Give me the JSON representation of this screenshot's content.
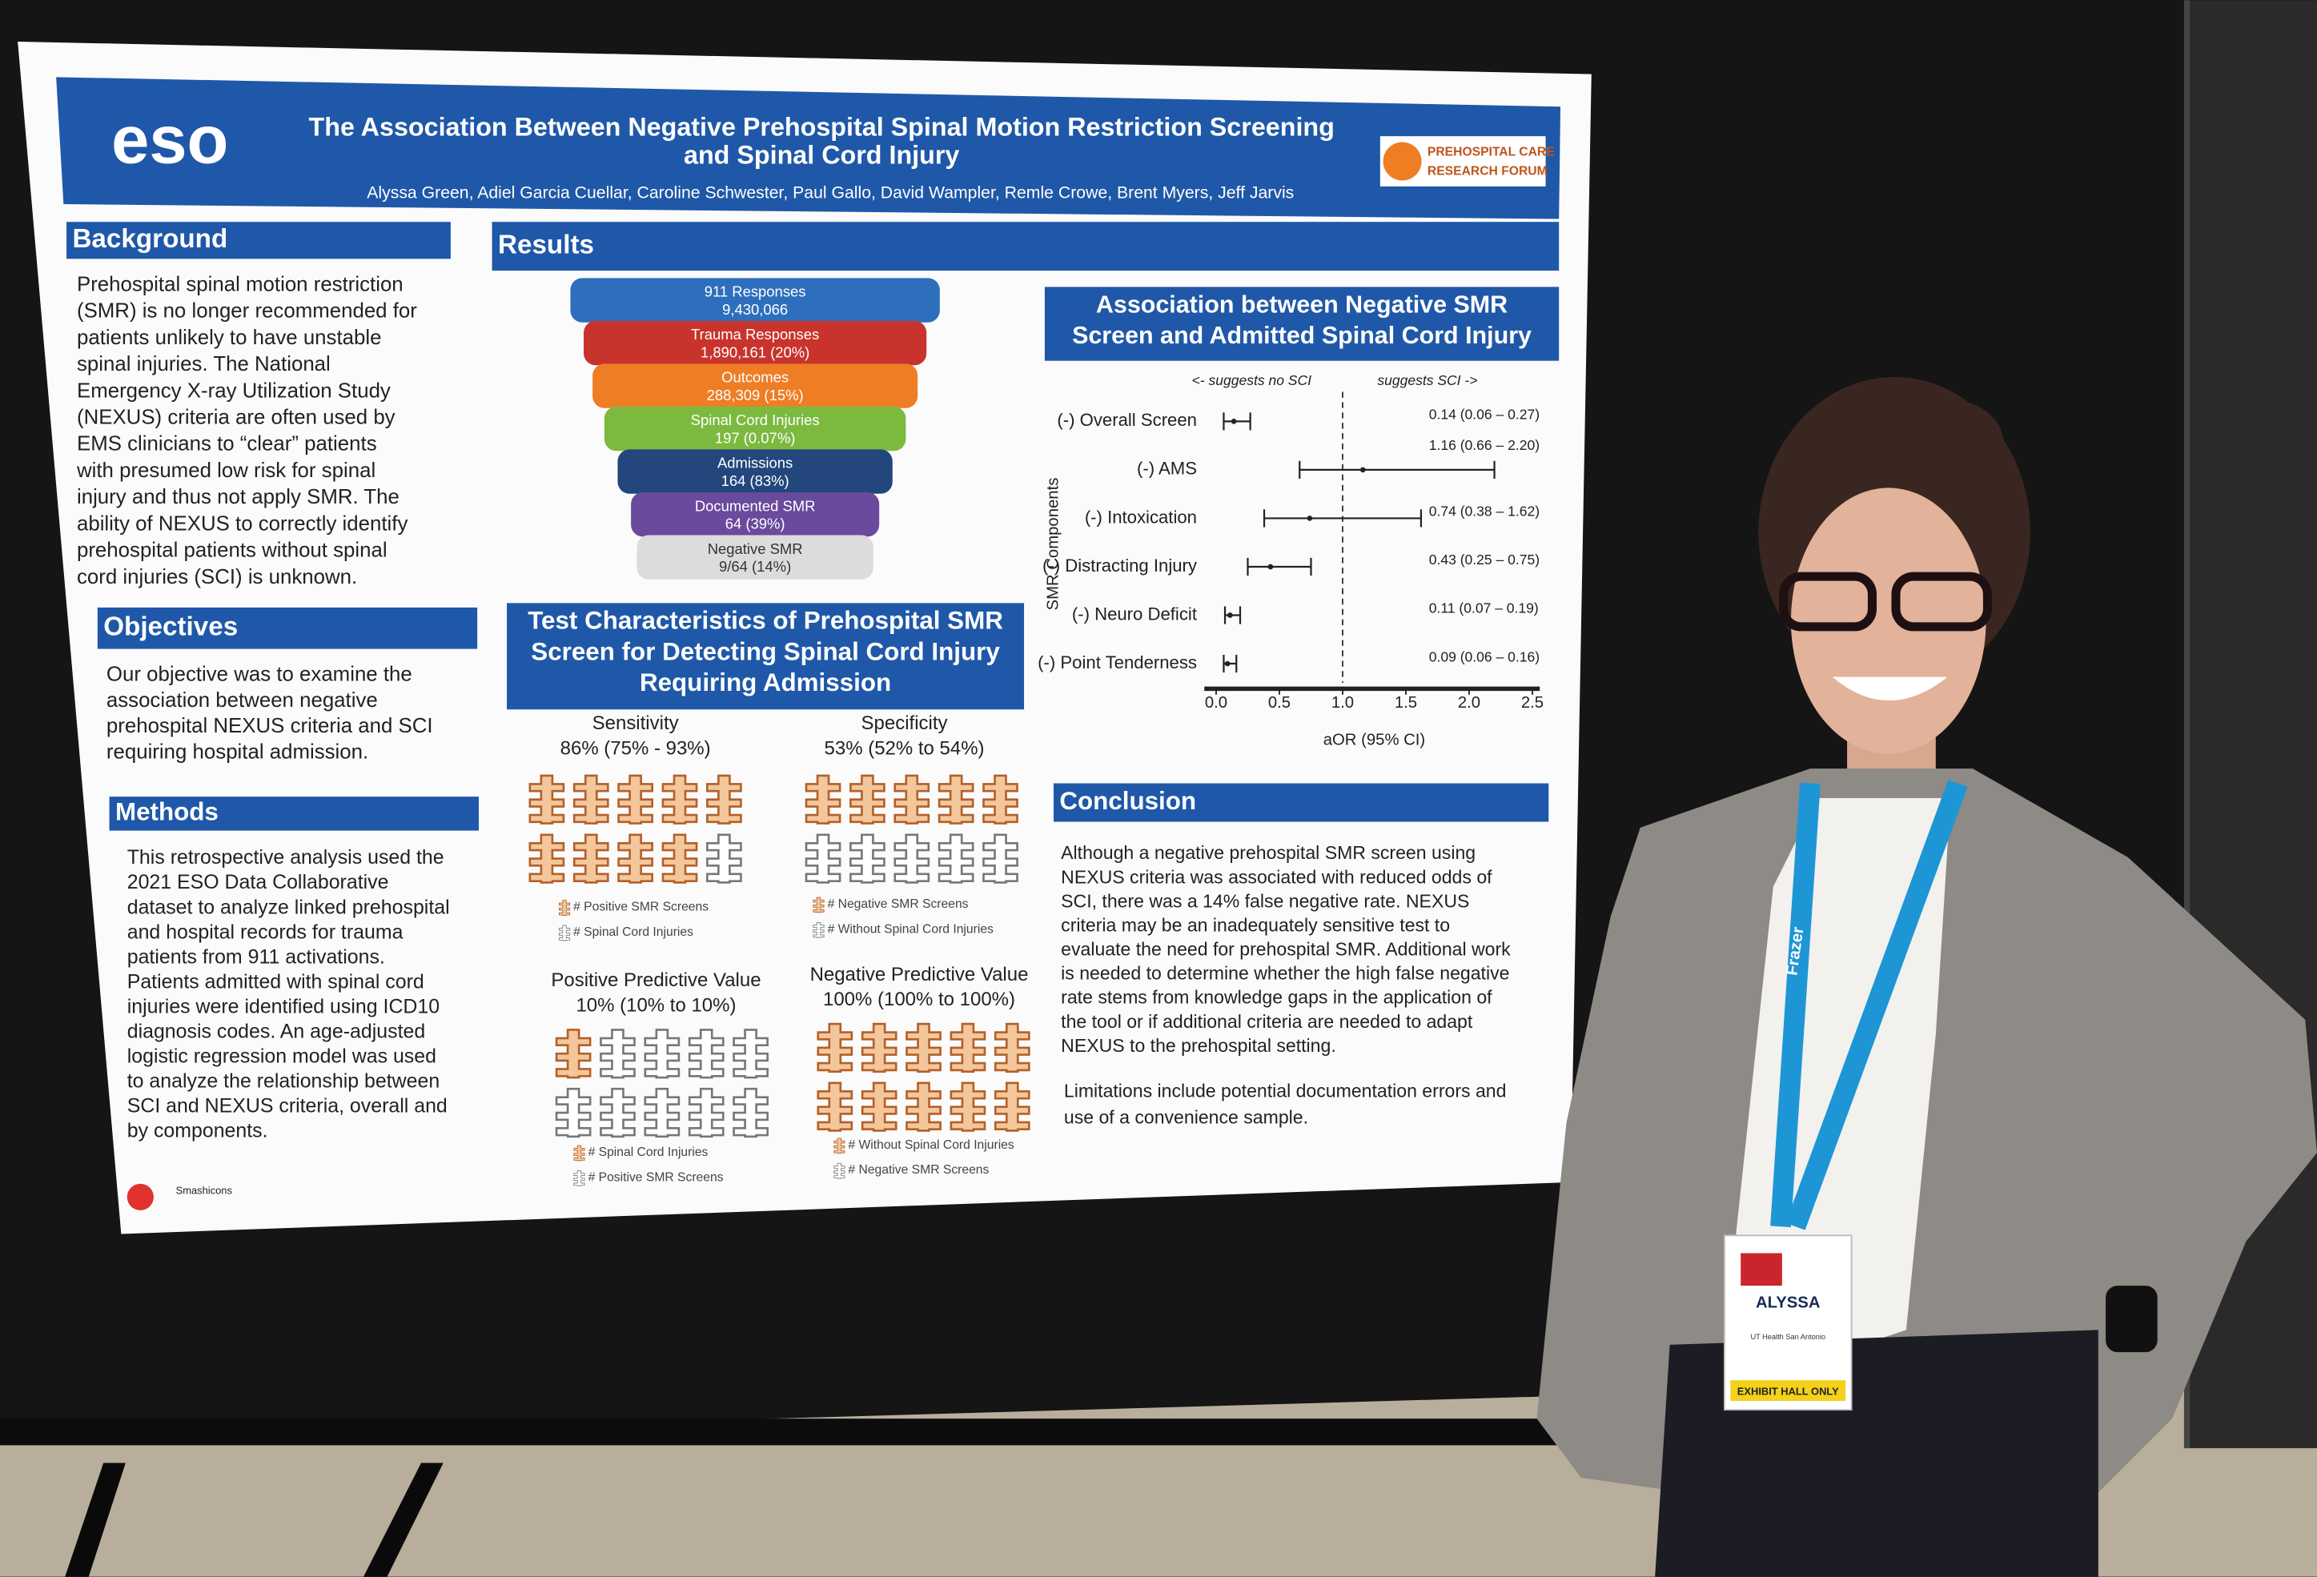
{
  "header": {
    "logo": "eso",
    "title_lines": [
      "The Association Between Negative Prehospital Spinal Motion Restriction Screening",
      "and Spinal Cord Injury"
    ],
    "authors": "Alyssa Green, Adiel Garcia Cuellar, Caroline Schwester, Paul Gallo, David Wampler, Remle Crowe, Brent Myers, Jeff Jarvis",
    "forum_lines": [
      "PREHOSPITAL CARE",
      "RESEARCH FORUM"
    ]
  },
  "background": {
    "heading": "Background",
    "lines": [
      "Prehospital spinal motion restriction",
      "(SMR) is no longer recommended for",
      "patients unlikely to have unstable",
      "spinal injuries. The National",
      "Emergency X-ray Utilization Study",
      "(NEXUS) criteria are often used by",
      "EMS clinicians to “clear” patients",
      "with presumed low risk for spinal",
      "injury and thus not apply SMR. The",
      "ability of NEXUS to correctly identify",
      "prehospital patients without spinal",
      "cord injuries (SCI) is unknown."
    ]
  },
  "objectives": {
    "heading": "Objectives",
    "lines": [
      "Our objective was to examine the",
      "association between negative",
      "prehospital NEXUS criteria and SCI",
      "requiring hospital admission."
    ]
  },
  "methods": {
    "heading": "Methods",
    "lines": [
      "This retrospective analysis used the",
      "2021 ESO Data Collaborative",
      "dataset to analyze linked prehospital",
      "and hospital records for trauma",
      "patients from 911 activations.",
      "Patients admitted with spinal cord",
      "injuries were identified using ICD10",
      "diagnosis codes. An age-adjusted",
      "logistic regression model was used",
      "to analyze the relationship between",
      "SCI and NEXUS criteria, overall and",
      "by components."
    ]
  },
  "results": {
    "heading": "Results",
    "funnel": [
      {
        "name": "911 Responses",
        "value": "9,430,066"
      },
      {
        "name": "Trauma Responses",
        "value": "1,890,161 (20%)"
      },
      {
        "name": "Outcomes",
        "value": "288,309 (15%)"
      },
      {
        "name": "Spinal Cord Injuries",
        "value": "197 (0.07%)"
      },
      {
        "name": "Admissions",
        "value": "164 (83%)"
      },
      {
        "name": "Documented SMR",
        "value": "64 (39%)"
      },
      {
        "name": "Negative SMR",
        "value": "9/64 (14%)"
      }
    ],
    "test_title_lines": [
      "Test Characteristics of Prehospital SMR",
      "Screen for Detecting Spinal Cord Injury",
      "Requiring Admission"
    ],
    "panels": [
      {
        "title": "Sensitivity",
        "value": "86% (75% - 93%)",
        "legend": [
          "# Positive SMR Screens",
          "# Spinal Cord Injuries"
        ]
      },
      {
        "title": "Specificity",
        "value": "53% (52% to 54%)",
        "legend": [
          "# Negative SMR Screens",
          "# Without Spinal Cord Injuries"
        ]
      },
      {
        "title": "Positive Predictive Value",
        "value": "10% (10% to 10%)",
        "legend": [
          "# Spinal Cord Injuries",
          "# Positive SMR Screens"
        ]
      },
      {
        "title": "Negative Predictive Value",
        "value": "100% (100% to 100%)",
        "legend": [
          "# Without Spinal Cord Injuries",
          "# Negative SMR Screens"
        ]
      }
    ]
  },
  "forest_plot": {
    "title_lines": [
      "Association between Negative SMR",
      "Screen and Admitted Spinal Cord Injury"
    ],
    "annotations": [
      "<- suggests no SCI",
      "suggests SCI ->"
    ],
    "y_label": "SMR Components",
    "x_label": "aOR (95% CI)",
    "xlim": [
      0,
      2.5
    ],
    "xticks": [
      {
        "value": 0,
        "label": "0.0"
      },
      0.5,
      {
        "value": 1,
        "label": "1.0"
      },
      1.5,
      {
        "value": 2,
        "label": "2.0"
      },
      2.5
    ],
    "reference": 1,
    "rows": [
      {
        "label": "(-) Overall Screen",
        "estimate": 0.14,
        "lower": 0.06,
        "upper": 0.27,
        "value_label": "0.14 (0.06 – 0.27)"
      },
      {
        "label": "(-) AMS",
        "estimate": 1.16,
        "lower": 0.66,
        "upper": 2.2,
        "value_label": "1.16 (0.66 – 2.20)"
      },
      {
        "label": "(-) Intoxication",
        "estimate": 0.74,
        "lower": 0.38,
        "upper": 1.62,
        "value_label": "0.74 (0.38 – 1.62)"
      },
      {
        "label": "(-) Distracting Injury",
        "estimate": 0.43,
        "lower": 0.25,
        "upper": 0.75,
        "value_label": "0.43 (0.25 – 0.75)"
      },
      {
        "label": "(-) Neuro Deficit",
        "estimate": 0.11,
        "lower": 0.07,
        "upper": 0.19,
        "value_label": "0.11 (0.07 – 0.19)"
      },
      {
        "label": "(-) Point Tenderness",
        "estimate": 0.09,
        "lower": 0.06,
        "upper": 0.16,
        "value_label": "0.09 (0.06 – 0.16)"
      }
    ]
  },
  "conclusion": {
    "heading": "Conclusion",
    "lines": [
      "Although a negative prehospital SMR screen using",
      "NEXUS criteria was associated with reduced odds of",
      "SCI, there was a 14% false negative rate. NEXUS",
      "criteria may be an inadequately sensitive test to",
      "evaluate the need for prehospital SMR. Additional work",
      "is needed to determine whether the high false negative",
      "rate stems from knowledge gaps in the application of",
      "the tool or if additional criteria are needed to adapt",
      "NEXUS to the prehospital setting."
    ],
    "limitations_lines": [
      "Limitations include potential documentation errors and",
      "use of a convenience sample."
    ]
  },
  "footer": {
    "credit": "Smashicons"
  },
  "badge": {
    "name": "ALYSSA",
    "affiliation": "UT Health San Antonio",
    "access": "EXHIBIT HALL ONLY",
    "lanyard": "Frazer"
  }
}
